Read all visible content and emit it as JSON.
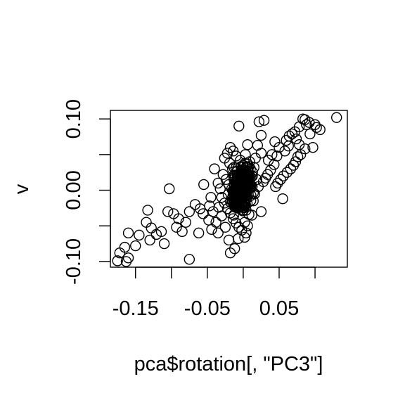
{
  "chart_data": {
    "type": "scatter",
    "title": "",
    "xlabel": "pca$rotation[, \"PC3\"]",
    "ylabel": "v",
    "xlim": [
      -0.185,
      0.145
    ],
    "ylim": [
      -0.108,
      0.112
    ],
    "xticks": [
      -0.15,
      -0.1,
      -0.05,
      0.0,
      0.05,
      0.1
    ],
    "xtick_labels": [
      "-0.15",
      "",
      "-0.05",
      "",
      "0.05",
      ""
    ],
    "yticks": [
      -0.1,
      -0.05,
      0.0,
      0.05,
      0.1
    ],
    "ytick_labels": [
      "-0.10",
      "",
      "0.00",
      "",
      "0.10"
    ],
    "grid": false,
    "legend": "none",
    "marker": "open-circle",
    "color": "#000000",
    "series": [
      {
        "points": [
          [
            0.13,
            0.102
          ],
          [
            0.107,
            0.085
          ],
          [
            0.102,
            0.088
          ],
          [
            0.092,
            0.095
          ],
          [
            0.088,
            0.092
          ],
          [
            0.086,
            0.099
          ],
          [
            0.083,
            0.1
          ],
          [
            0.078,
            0.089
          ],
          [
            0.072,
            0.082
          ],
          [
            0.068,
            0.079
          ],
          [
            0.064,
            0.076
          ],
          [
            0.06,
            0.07
          ],
          [
            0.097,
            0.06
          ],
          [
            0.086,
            0.058
          ],
          [
            0.076,
            0.047
          ],
          [
            0.073,
            0.04
          ],
          [
            0.07,
            0.035
          ],
          [
            0.066,
            0.03
          ],
          [
            0.061,
            0.025
          ],
          [
            0.056,
            0.02
          ],
          [
            0.052,
            0.015
          ],
          [
            0.048,
            0.01
          ],
          [
            0.045,
            0.005
          ],
          [
            0.055,
            -0.012
          ],
          [
            0.043,
            0.036
          ],
          [
            0.038,
            0.028
          ],
          [
            0.034,
            0.022
          ],
          [
            0.031,
            0.017
          ],
          [
            0.028,
            0.012
          ],
          [
            0.025,
            0.052
          ],
          [
            0.022,
            0.096
          ],
          [
            0.029,
            0.098
          ],
          [
            0.025,
            0.077
          ],
          [
            0.02,
            0.063
          ],
          [
            0.017,
            0.045
          ],
          [
            0.015,
            0.032
          ],
          [
            0.013,
            0.025
          ],
          [
            0.011,
            0.018
          ],
          [
            0.009,
            0.01
          ],
          [
            0.025,
            -0.03
          ],
          [
            0.012,
            -0.035
          ],
          [
            0.006,
            -0.05
          ],
          [
            0.004,
            -0.06
          ],
          [
            0.002,
            -0.066
          ],
          [
            -0.007,
            -0.068
          ],
          [
            -0.012,
            -0.082
          ],
          [
            -0.018,
            -0.088
          ],
          [
            -0.02,
            -0.07
          ],
          [
            -0.025,
            -0.052
          ],
          [
            -0.035,
            -0.06
          ],
          [
            -0.044,
            -0.055
          ],
          [
            -0.048,
            -0.042
          ],
          [
            -0.056,
            -0.033
          ],
          [
            -0.06,
            -0.026
          ],
          [
            -0.067,
            -0.02
          ],
          [
            -0.075,
            -0.03
          ],
          [
            -0.08,
            -0.045
          ],
          [
            -0.085,
            -0.058
          ],
          [
            -0.093,
            -0.052
          ],
          [
            -0.097,
            -0.033
          ],
          [
            -0.105,
            -0.03
          ],
          [
            -0.114,
            -0.058
          ],
          [
            -0.121,
            -0.062
          ],
          [
            -0.128,
            -0.053
          ],
          [
            -0.133,
            -0.028
          ],
          [
            -0.135,
            -0.045
          ],
          [
            -0.145,
            -0.063
          ],
          [
            -0.15,
            -0.078
          ],
          [
            -0.16,
            -0.06
          ],
          [
            -0.165,
            -0.08
          ],
          [
            -0.172,
            -0.088
          ],
          [
            -0.16,
            -0.095
          ],
          [
            -0.175,
            -0.099
          ],
          [
            -0.163,
            -0.1
          ],
          [
            -0.13,
            -0.07
          ],
          [
            -0.11,
            -0.075
          ],
          [
            -0.103,
            0.002
          ],
          [
            -0.09,
            -0.04
          ],
          [
            -0.075,
            -0.097
          ],
          [
            -0.062,
            -0.06
          ],
          [
            -0.055,
            0.008
          ],
          [
            -0.045,
            -0.01
          ],
          [
            -0.04,
            0.03
          ],
          [
            -0.035,
            0.01
          ],
          [
            -0.03,
            -0.036
          ],
          [
            -0.026,
            0.045
          ],
          [
            -0.022,
            0.052
          ],
          [
            -0.018,
            0.06
          ],
          [
            -0.014,
            0.055
          ],
          [
            -0.01,
            0.048
          ],
          [
            -0.006,
            0.09
          ],
          [
            -0.004,
            0.042
          ],
          [
            0.0,
            0.035
          ],
          [
            0.003,
            0.05
          ],
          [
            0.006,
            0.064
          ],
          [
            0.009,
            0.04
          ],
          [
            -0.003,
            0.028
          ],
          [
            -0.028,
            0.022
          ],
          [
            -0.024,
            0.015
          ],
          [
            -0.02,
            0.008
          ],
          [
            -0.016,
            0.002
          ],
          [
            -0.012,
            -0.004
          ],
          [
            -0.008,
            -0.01
          ],
          [
            -0.004,
            -0.016
          ],
          [
            0.0,
            -0.022
          ],
          [
            0.004,
            -0.028
          ],
          [
            0.008,
            -0.034
          ],
          [
            -0.03,
            -0.01
          ],
          [
            -0.026,
            -0.018
          ],
          [
            -0.022,
            -0.026
          ],
          [
            -0.018,
            -0.032
          ],
          [
            -0.014,
            -0.04
          ],
          [
            -0.01,
            -0.046
          ],
          [
            -0.006,
            -0.052
          ],
          [
            -0.002,
            -0.056
          ],
          [
            0.002,
            -0.045
          ],
          [
            -0.015,
            0.03
          ],
          [
            -0.011,
            0.02
          ],
          [
            -0.007,
            0.012
          ],
          [
            -0.003,
            0.006
          ],
          [
            0.001,
            0.0
          ],
          [
            0.005,
            -0.006
          ],
          [
            -0.019,
            0.038
          ],
          [
            -0.013,
            0.032
          ],
          [
            -0.009,
            0.026
          ],
          [
            -0.005,
            0.02
          ],
          [
            0.003,
            0.016
          ],
          [
            0.007,
            0.022
          ],
          [
            -0.021,
            -0.006
          ],
          [
            -0.017,
            -0.014
          ],
          [
            -0.013,
            -0.02
          ],
          [
            -0.009,
            0.004
          ],
          [
            -0.005,
            -0.002
          ],
          [
            -0.001,
            -0.008
          ],
          [
            0.01,
            0.03
          ],
          [
            0.012,
            0.004
          ],
          [
            -0.032,
            0.002
          ],
          [
            -0.034,
            -0.024
          ],
          [
            0.014,
            -0.015
          ],
          [
            0.016,
            -0.005
          ],
          [
            -0.038,
            -0.045
          ],
          [
            -0.042,
            -0.03
          ],
          [
            -0.047,
            -0.022
          ],
          [
            0.019,
            0.015
          ],
          [
            0.021,
            0.005
          ],
          [
            0.035,
            0.042
          ],
          [
            0.04,
            0.05
          ],
          [
            0.047,
            0.048
          ],
          [
            0.058,
            0.055
          ],
          [
            0.063,
            0.062
          ],
          [
            0.078,
            0.064
          ],
          [
            0.08,
            0.05
          ],
          [
            0.074,
            0.072
          ],
          [
            0.093,
            0.079
          ],
          [
            0.1,
            0.092
          ],
          [
            0.05,
            0.06
          ],
          [
            0.044,
            0.068
          ]
        ]
      }
    ]
  }
}
